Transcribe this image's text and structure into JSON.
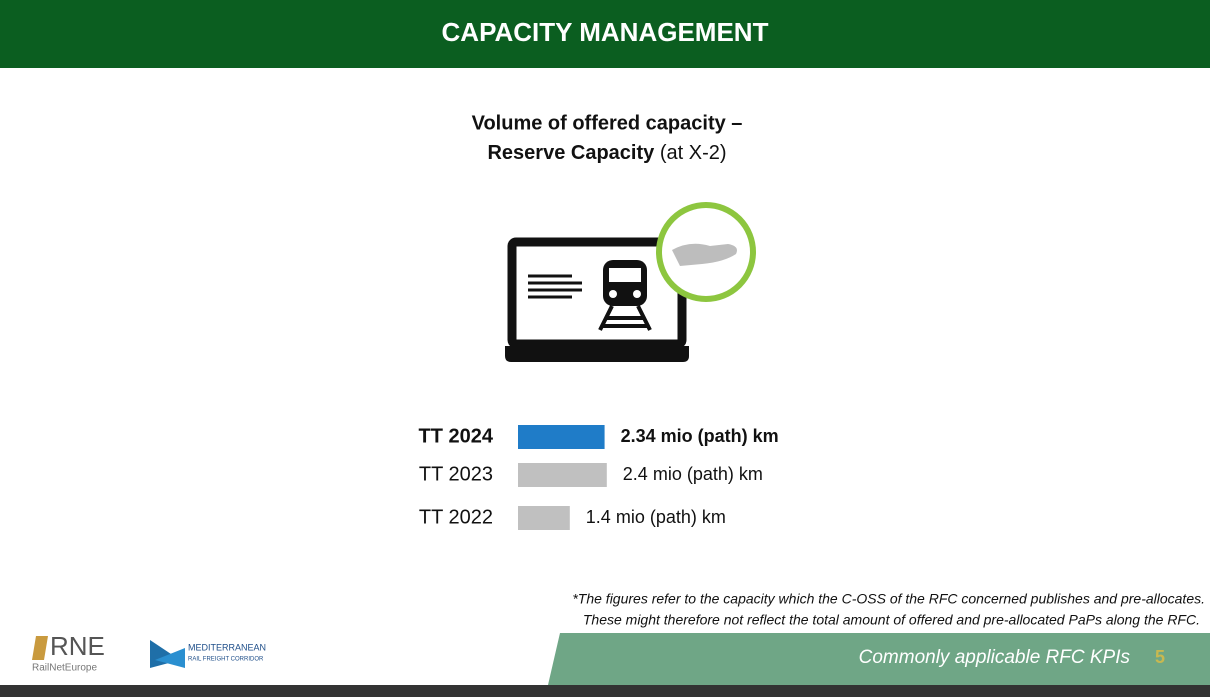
{
  "slide": {
    "header": "CAPACITY MANAGEMENT",
    "subtitle_line1": "Volume of offered capacity –",
    "subtitle_bold": "Reserve Capacity",
    "subtitle_rest": "(at X-2)",
    "footnote_line1": "*The figures refer to the capacity which the C-OSS of the RFC concerned publishes and pre-allocates.",
    "footnote_line2": "These might therefore not reflect the total amount of offered and pre-allocated PaPs along the RFC.",
    "footer": "Commonly applicable RFC KPIs",
    "page_number": "5",
    "logo_rne": "RNE",
    "logo_rne_sub": "RailNetEurope",
    "logo_med_1": "MEDITERRANEAN",
    "logo_med_2": "RAIL FREIGHT CORRIDOR"
  },
  "chart_data": {
    "type": "hbar",
    "categories": [
      "TT 2024",
      "TT 2023",
      "TT 2022"
    ],
    "values": [
      2.34,
      2.4,
      1.4
    ],
    "value_labels": [
      "2.34 mio (path) km",
      "2.4 mio (path) km",
      "1.4 mio (path) km"
    ],
    "colors": [
      "#1f7cc8",
      "#c0c0c0",
      "#c0c0c0"
    ]
  }
}
